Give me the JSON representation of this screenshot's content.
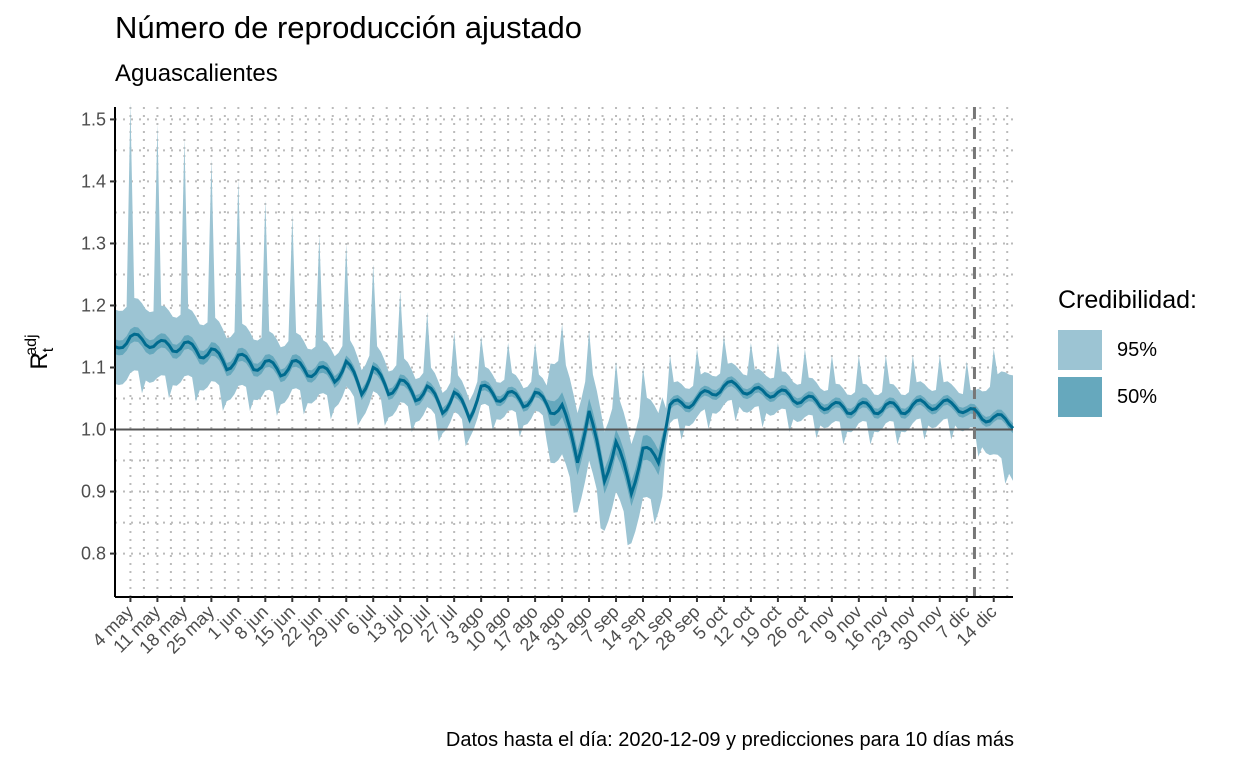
{
  "title": "Número de reproducción ajustado",
  "subtitle": "Aguascalientes",
  "caption": "Datos hasta el día: 2020-12-09 y predicciones para 10 días más",
  "legend": {
    "title": "Credibilidad:",
    "items": [
      {
        "label": "95%",
        "color": "#9cc4d3"
      },
      {
        "label": "50%",
        "color": "#66a8bd"
      }
    ]
  },
  "colors": {
    "line": "#006b8f",
    "ci95": "#9cc4d3",
    "ci50": "#66a8bd",
    "reference": "#555555",
    "grid": "#bbbbbb"
  },
  "chart_data": {
    "type": "line",
    "ylabel": "R",
    "ylabel_sub": "t",
    "ylabel_sup": "adj",
    "xlabel": "",
    "ylim": [
      0.73,
      1.52
    ],
    "xlim": [
      "2020-04-30",
      "2020-12-19"
    ],
    "yticks": [
      0.8,
      0.9,
      1.0,
      1.1,
      1.2,
      1.3,
      1.4,
      1.5
    ],
    "ytick_labels": [
      "0.8",
      "0.9",
      "1.0",
      "1.1",
      "1.2",
      "1.3",
      "1.4",
      "1.5"
    ],
    "xticks": [
      "2020-05-04",
      "2020-05-11",
      "2020-05-18",
      "2020-05-25",
      "2020-06-01",
      "2020-06-08",
      "2020-06-15",
      "2020-06-22",
      "2020-06-29",
      "2020-07-06",
      "2020-07-13",
      "2020-07-20",
      "2020-07-27",
      "2020-08-03",
      "2020-08-10",
      "2020-08-17",
      "2020-08-24",
      "2020-08-31",
      "2020-09-07",
      "2020-09-14",
      "2020-09-21",
      "2020-09-28",
      "2020-10-05",
      "2020-10-12",
      "2020-10-19",
      "2020-10-26",
      "2020-11-02",
      "2020-11-09",
      "2020-11-16",
      "2020-11-23",
      "2020-11-30",
      "2020-12-07",
      "2020-12-14"
    ],
    "xtick_labels": [
      "4 may",
      "11 may",
      "18 may",
      "25 may",
      "1 jun",
      "8 jun",
      "15 jun",
      "22 jun",
      "29 jun",
      "6 jul",
      "13 jul",
      "20 jul",
      "27 jul",
      "3 ago",
      "10 ago",
      "17 ago",
      "24 ago",
      "31 ago",
      "7 sep",
      "14 sep",
      "21 sep",
      "28 sep",
      "5 oct",
      "12 oct",
      "19 oct",
      "26 oct",
      "2 nov",
      "9 nov",
      "16 nov",
      "23 nov",
      "30 nov",
      "7 dic",
      "14 dic"
    ],
    "reference_line": 1.0,
    "data_cutoff": "2020-12-09",
    "grid": true,
    "legend_position": "right",
    "series": [
      {
        "name": "Rt",
        "x": [
          "2020-04-30",
          "2020-05-04",
          "2020-05-08",
          "2020-05-11",
          "2020-05-15",
          "2020-05-18",
          "2020-05-22",
          "2020-05-25",
          "2020-05-29",
          "2020-06-01",
          "2020-06-05",
          "2020-06-08",
          "2020-06-12",
          "2020-06-15",
          "2020-06-19",
          "2020-06-22",
          "2020-06-26",
          "2020-06-29",
          "2020-07-03",
          "2020-07-06",
          "2020-07-10",
          "2020-07-13",
          "2020-07-17",
          "2020-07-20",
          "2020-07-24",
          "2020-07-27",
          "2020-07-31",
          "2020-08-03",
          "2020-08-07",
          "2020-08-10",
          "2020-08-14",
          "2020-08-17",
          "2020-08-21",
          "2020-08-24",
          "2020-08-28",
          "2020-08-31",
          "2020-09-04",
          "2020-09-07",
          "2020-09-11",
          "2020-09-14",
          "2020-09-18",
          "2020-09-21",
          "2020-09-25",
          "2020-09-28",
          "2020-10-02",
          "2020-10-05",
          "2020-10-09",
          "2020-10-12",
          "2020-10-16",
          "2020-10-19",
          "2020-10-23",
          "2020-10-26",
          "2020-10-30",
          "2020-11-02",
          "2020-11-06",
          "2020-11-09",
          "2020-11-13",
          "2020-11-16",
          "2020-11-20",
          "2020-11-23",
          "2020-11-27",
          "2020-11-30",
          "2020-12-04",
          "2020-12-07",
          "2020-12-11",
          "2020-12-14",
          "2020-12-19"
        ],
        "values": [
          1.13,
          1.15,
          1.14,
          1.14,
          1.13,
          1.14,
          1.12,
          1.13,
          1.1,
          1.12,
          1.1,
          1.11,
          1.09,
          1.11,
          1.09,
          1.1,
          1.08,
          1.11,
          1.06,
          1.1,
          1.06,
          1.08,
          1.05,
          1.07,
          1.03,
          1.06,
          1.02,
          1.07,
          1.05,
          1.06,
          1.04,
          1.06,
          1.03,
          1.04,
          0.95,
          1.03,
          0.92,
          0.98,
          0.9,
          0.97,
          0.95,
          1.04,
          1.04,
          1.05,
          1.06,
          1.07,
          1.07,
          1.06,
          1.06,
          1.06,
          1.05,
          1.05,
          1.04,
          1.04,
          1.03,
          1.04,
          1.03,
          1.04,
          1.03,
          1.04,
          1.04,
          1.04,
          1.04,
          1.03,
          1.02,
          1.02,
          1.01
        ]
      }
    ]
  }
}
